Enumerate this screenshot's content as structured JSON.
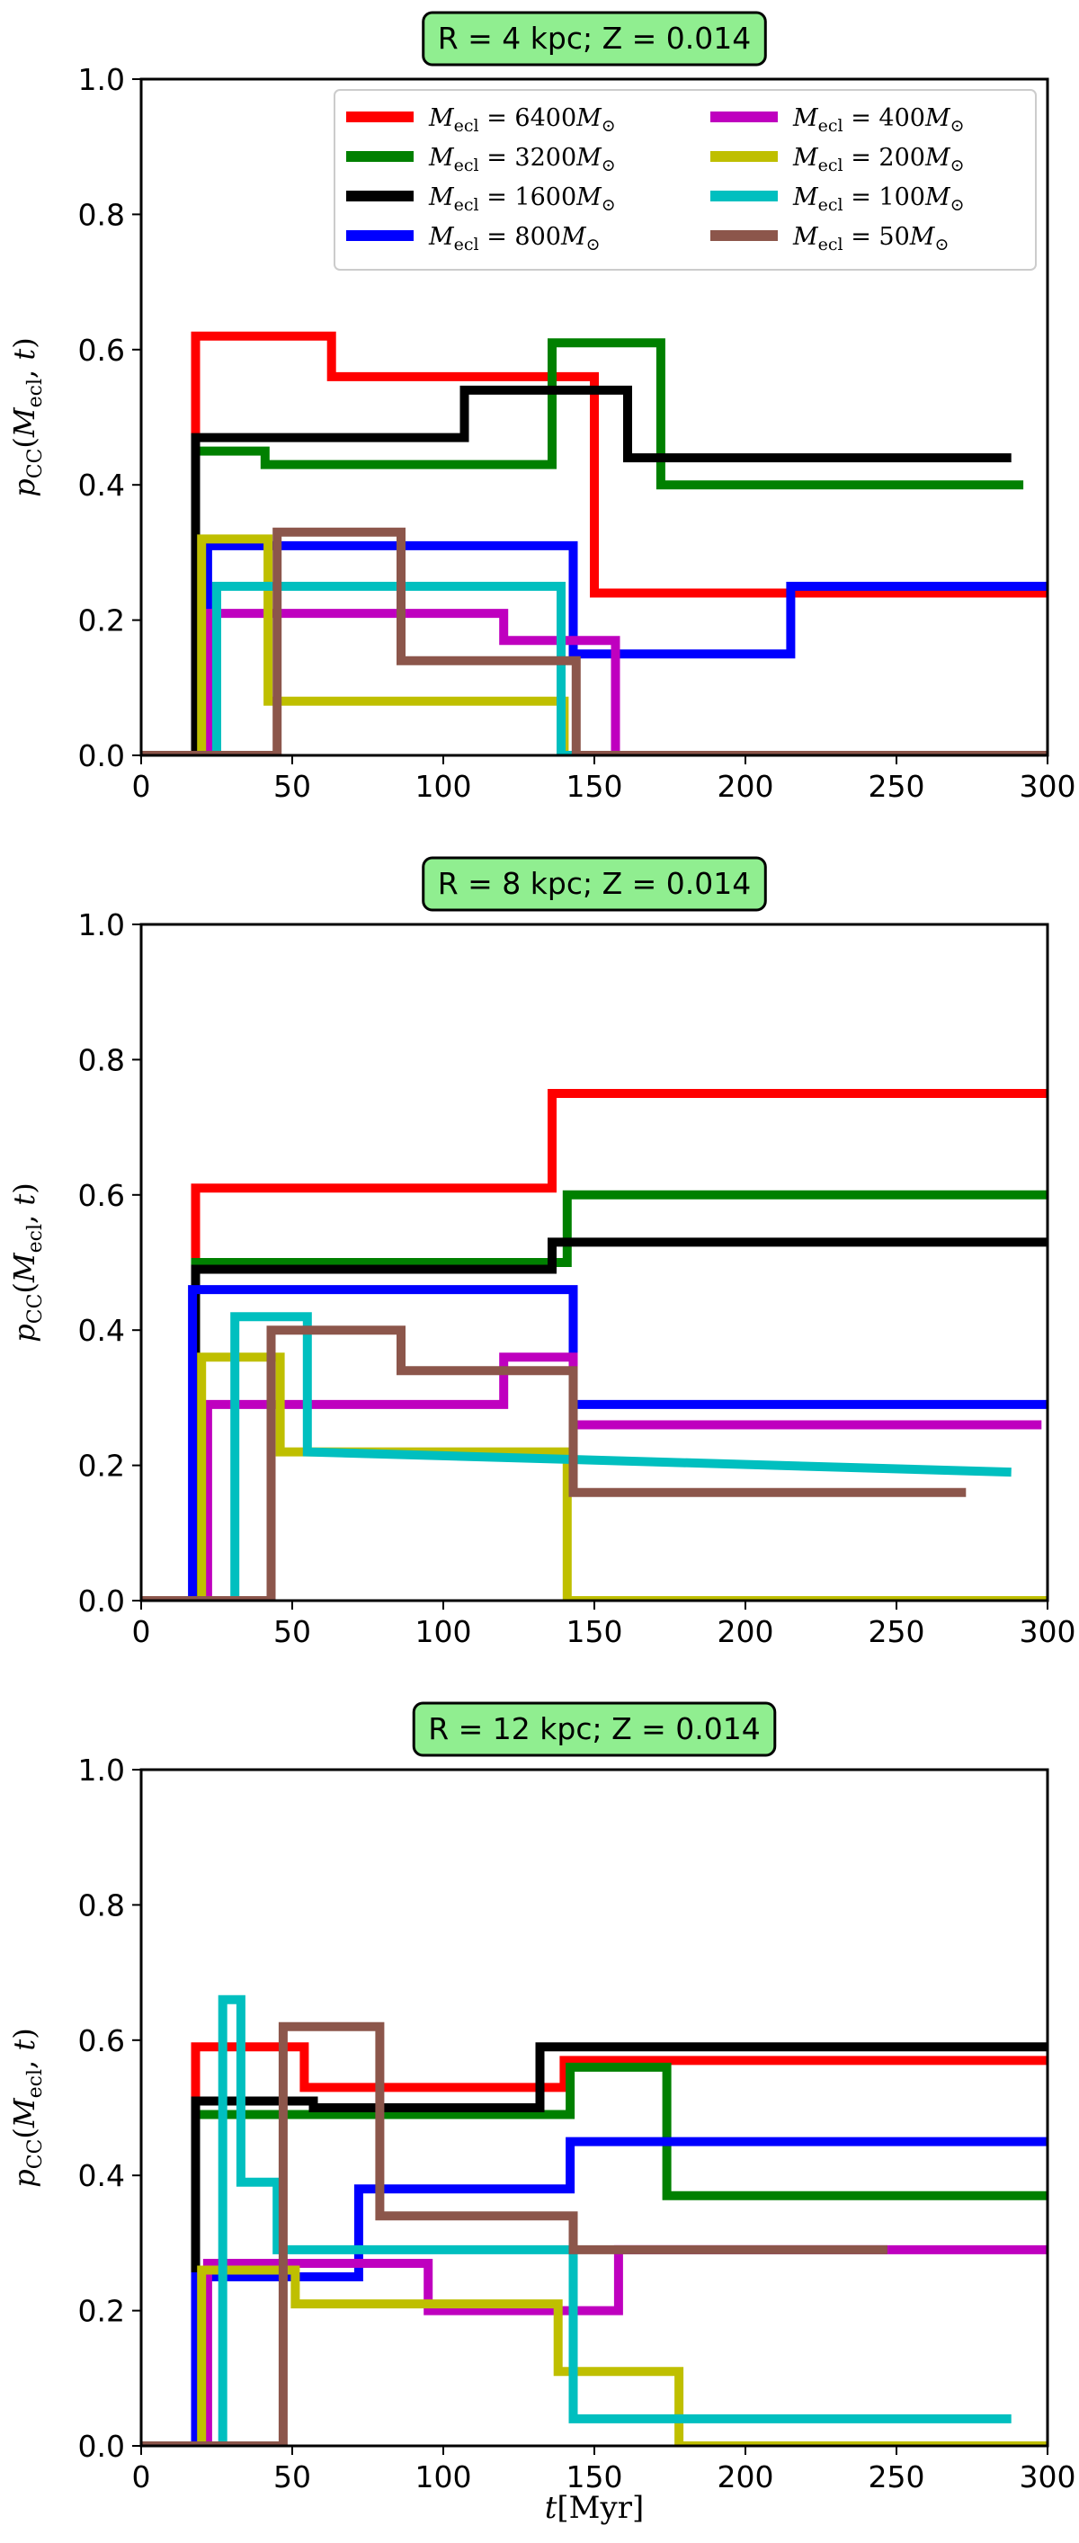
{
  "chart_data": [
    {
      "type": "line",
      "title": "R = 4 kpc; Z = 0.014",
      "ylabel": "p_CC(M_ecl, t)",
      "xlabel": "",
      "xlim": [
        0,
        300
      ],
      "ylim": [
        0,
        1.0
      ],
      "xticks": [
        "0",
        "50",
        "100",
        "150",
        "200",
        "250",
        "300"
      ],
      "yticks": [
        "0.0",
        "0.2",
        "0.4",
        "0.6",
        "0.8",
        "1.0"
      ],
      "legend": "top-right",
      "series": [
        {
          "name": "M_ecl = 6400 M_sun",
          "color": "#ff0000",
          "x": [
            0,
            18,
            18,
            63,
            63,
            150,
            150,
            300
          ],
          "y": [
            0,
            0,
            0.62,
            0.62,
            0.56,
            0.56,
            0.24,
            0.24
          ]
        },
        {
          "name": "M_ecl = 3200 M_sun",
          "color": "#008000",
          "x": [
            0,
            18,
            18,
            41,
            41,
            136,
            136,
            172,
            172,
            292
          ],
          "y": [
            0,
            0,
            0.45,
            0.45,
            0.43,
            0.43,
            0.61,
            0.61,
            0.4,
            0.4
          ]
        },
        {
          "name": "M_ecl = 1600 M_sun",
          "color": "#000000",
          "x": [
            0,
            18,
            18,
            107,
            107,
            161,
            161,
            288
          ],
          "y": [
            0,
            0,
            0.47,
            0.47,
            0.54,
            0.54,
            0.44,
            0.44
          ]
        },
        {
          "name": "M_ecl = 800 M_sun",
          "color": "#0000ff",
          "x": [
            0,
            22,
            22,
            143,
            143,
            215,
            215,
            300
          ],
          "y": [
            0,
            0,
            0.31,
            0.31,
            0.15,
            0.15,
            0.25,
            0.25
          ]
        },
        {
          "name": "M_ecl = 400 M_sun",
          "color": "#bf00bf",
          "x": [
            0,
            22,
            22,
            120,
            120,
            157,
            157,
            300
          ],
          "y": [
            0,
            0,
            0.21,
            0.21,
            0.17,
            0.17,
            0.0,
            0.0
          ]
        },
        {
          "name": "M_ecl = 200 M_sun",
          "color": "#bfbf00",
          "x": [
            0,
            20,
            20,
            42,
            42,
            140,
            140,
            300
          ],
          "y": [
            0,
            0,
            0.32,
            0.32,
            0.08,
            0.08,
            0.0,
            0.0
          ]
        },
        {
          "name": "M_ecl = 100 M_sun",
          "color": "#00bfbf",
          "x": [
            0,
            25,
            25,
            139,
            139,
            300
          ],
          "y": [
            0,
            0,
            0.25,
            0.25,
            0.0,
            0.0
          ]
        },
        {
          "name": "M_ecl = 50 M_sun",
          "color": "#8c564b",
          "x": [
            0,
            45,
            45,
            86,
            86,
            144,
            144,
            300
          ],
          "y": [
            0,
            0,
            0.33,
            0.33,
            0.14,
            0.14,
            0.0,
            0.0
          ]
        }
      ]
    },
    {
      "type": "line",
      "title": "R = 8 kpc; Z = 0.014",
      "ylabel": "p_CC(M_ecl, t)",
      "xlabel": "",
      "xlim": [
        0,
        300
      ],
      "ylim": [
        0,
        1.0
      ],
      "xticks": [
        "0",
        "50",
        "100",
        "150",
        "200",
        "250",
        "300"
      ],
      "yticks": [
        "0.0",
        "0.2",
        "0.4",
        "0.6",
        "0.8",
        "1.0"
      ],
      "series": [
        {
          "name": "M_ecl = 6400 M_sun",
          "color": "#ff0000",
          "x": [
            0,
            18,
            18,
            136,
            136,
            300
          ],
          "y": [
            0,
            0,
            0.61,
            0.61,
            0.75,
            0.75
          ]
        },
        {
          "name": "M_ecl = 3200 M_sun",
          "color": "#008000",
          "x": [
            0,
            18,
            18,
            141,
            141,
            300
          ],
          "y": [
            0,
            0,
            0.5,
            0.5,
            0.6,
            0.6
          ]
        },
        {
          "name": "M_ecl = 1600 M_sun",
          "color": "#000000",
          "x": [
            0,
            18,
            18,
            136,
            136,
            300
          ],
          "y": [
            0,
            0,
            0.49,
            0.49,
            0.53,
            0.53
          ]
        },
        {
          "name": "M_ecl = 800 M_sun",
          "color": "#0000ff",
          "x": [
            0,
            17,
            17,
            143,
            143,
            300
          ],
          "y": [
            0,
            0,
            0.46,
            0.46,
            0.29,
            0.29
          ]
        },
        {
          "name": "M_ecl = 400 M_sun",
          "color": "#bf00bf",
          "x": [
            0,
            22,
            22,
            120,
            120,
            143,
            143,
            298
          ],
          "y": [
            0,
            0,
            0.29,
            0.29,
            0.36,
            0.36,
            0.26,
            0.26
          ]
        },
        {
          "name": "M_ecl = 200 M_sun",
          "color": "#bfbf00",
          "x": [
            0,
            20,
            20,
            46,
            46,
            141,
            141,
            300
          ],
          "y": [
            0,
            0,
            0.36,
            0.36,
            0.22,
            0.22,
            0.0,
            0.0
          ]
        },
        {
          "name": "M_ecl = 100 M_sun",
          "color": "#00bfbf",
          "x": [
            0,
            31,
            31,
            55,
            55,
            288
          ],
          "y": [
            0,
            0,
            0.42,
            0.42,
            0.22,
            0.19
          ]
        },
        {
          "name": "M_ecl = 50 M_sun",
          "color": "#8c564b",
          "x": [
            0,
            43,
            43,
            86,
            86,
            143,
            143,
            273
          ],
          "y": [
            0,
            0,
            0.4,
            0.4,
            0.34,
            0.34,
            0.16,
            0.16
          ]
        }
      ]
    },
    {
      "type": "line",
      "title": "R = 12 kpc; Z = 0.014",
      "ylabel": "p_CC(M_ecl, t)",
      "xlabel": "t[Myr]",
      "xlim": [
        0,
        300
      ],
      "ylim": [
        0,
        1.0
      ],
      "xticks": [
        "0",
        "50",
        "100",
        "150",
        "200",
        "250",
        "300"
      ],
      "yticks": [
        "0.0",
        "0.2",
        "0.4",
        "0.6",
        "0.8",
        "1.0"
      ],
      "series": [
        {
          "name": "M_ecl = 6400 M_sun",
          "color": "#ff0000",
          "x": [
            0,
            18,
            18,
            54,
            54,
            140,
            140,
            300
          ],
          "y": [
            0,
            0,
            0.59,
            0.59,
            0.53,
            0.53,
            0.57,
            0.57
          ]
        },
        {
          "name": "M_ecl = 3200 M_sun",
          "color": "#008000",
          "x": [
            0,
            18,
            18,
            142,
            142,
            174,
            174,
            300
          ],
          "y": [
            0,
            0,
            0.49,
            0.49,
            0.56,
            0.56,
            0.37,
            0.37
          ]
        },
        {
          "name": "M_ecl = 1600 M_sun",
          "color": "#000000",
          "x": [
            0,
            18,
            18,
            57,
            57,
            132,
            132,
            300
          ],
          "y": [
            0,
            0,
            0.51,
            0.51,
            0.5,
            0.5,
            0.59,
            0.59
          ]
        },
        {
          "name": "M_ecl = 800 M_sun",
          "color": "#0000ff",
          "x": [
            0,
            18,
            18,
            72,
            72,
            142,
            142,
            300
          ],
          "y": [
            0,
            0,
            0.25,
            0.25,
            0.38,
            0.38,
            0.45,
            0.45
          ]
        },
        {
          "name": "M_ecl = 400 M_sun",
          "color": "#bf00bf",
          "x": [
            0,
            22,
            22,
            95,
            95,
            158,
            158,
            300
          ],
          "y": [
            0,
            0,
            0.27,
            0.27,
            0.2,
            0.2,
            0.29,
            0.29
          ]
        },
        {
          "name": "M_ecl = 200 M_sun",
          "color": "#bfbf00",
          "x": [
            0,
            20,
            20,
            51,
            51,
            138,
            138,
            178,
            178,
            300
          ],
          "y": [
            0,
            0,
            0.26,
            0.26,
            0.21,
            0.21,
            0.11,
            0.11,
            0.0,
            0.0
          ]
        },
        {
          "name": "M_ecl = 100 M_sun",
          "color": "#00bfbf",
          "x": [
            0,
            27,
            27,
            33,
            33,
            45,
            45,
            143,
            143,
            288
          ],
          "y": [
            0,
            0,
            0.66,
            0.66,
            0.39,
            0.39,
            0.29,
            0.29,
            0.04,
            0.04
          ]
        },
        {
          "name": "M_ecl = 50 M_sun",
          "color": "#8c564b",
          "x": [
            0,
            47,
            47,
            79,
            79,
            143,
            143,
            247
          ],
          "y": [
            0,
            0,
            0.62,
            0.62,
            0.34,
            0.34,
            0.29,
            0.29
          ]
        }
      ]
    }
  ],
  "legend": {
    "items": [
      {
        "label": "6400",
        "color": "#ff0000"
      },
      {
        "label": "400",
        "color": "#bf00bf"
      },
      {
        "label": "3200",
        "color": "#008000"
      },
      {
        "label": "200",
        "color": "#bfbf00"
      },
      {
        "label": "1600",
        "color": "#000000"
      },
      {
        "label": "100",
        "color": "#00bfbf"
      },
      {
        "label": "800",
        "color": "#0000ff"
      },
      {
        "label": "50",
        "color": "#8c564b"
      }
    ]
  },
  "colors": {
    "title_box_fill": "#90ee90",
    "title_box_stroke": "#000000"
  }
}
